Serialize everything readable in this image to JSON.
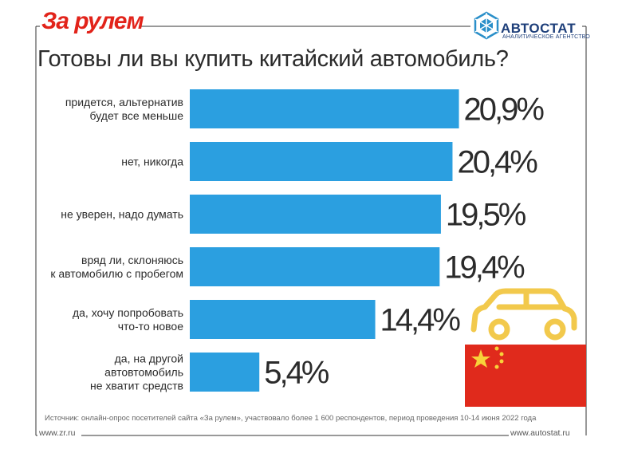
{
  "header": {
    "brand_left": "За рулем",
    "brand_right": "АВТОСТАТ",
    "brand_right_sub": "АНАЛИТИЧЕСКОЕ АГЕНТСТВО"
  },
  "footer": {
    "source": "Источник: онлайн-опрос посетителей сайта «За рулем», участвовало более 1 600 респондентов, период проведения 10-14 июня 2022 года",
    "url_left": "www.zr.ru",
    "url_right": "www.autostat.ru"
  },
  "colors": {
    "bar": "#2b9fe0",
    "brand_red": "#e2231a",
    "brand_blue": "#1e3f7a",
    "car_yellow": "#f2c94c",
    "flag_red": "#e02a1c",
    "flag_star": "#f8d23a"
  },
  "icons": [
    "car-icon",
    "china-flag-icon",
    "autostat-logo-icon"
  ],
  "chart_data": {
    "type": "bar",
    "orientation": "horizontal",
    "title": "Готовы ли вы купить китайский автомобиль?",
    "categories": [
      [
        "придется, альтернатив",
        "будет все меньше"
      ],
      [
        "нет, никогда"
      ],
      [
        "не уверен, надо думать"
      ],
      [
        "вряд ли, склоняюсь",
        "к автомобилю с пробегом"
      ],
      [
        "да, хочу попробовать",
        "что-то новое"
      ],
      [
        "да, на другой",
        "автовтомобиль",
        "не хватит средств"
      ]
    ],
    "values": [
      20.9,
      20.4,
      19.5,
      19.4,
      14.4,
      5.4
    ],
    "value_labels": [
      "20,9%",
      "20,4%",
      "19,5%",
      "19,4%",
      "14,4%",
      "5,4%"
    ],
    "unit": "%",
    "grid": false,
    "legend": "none"
  }
}
